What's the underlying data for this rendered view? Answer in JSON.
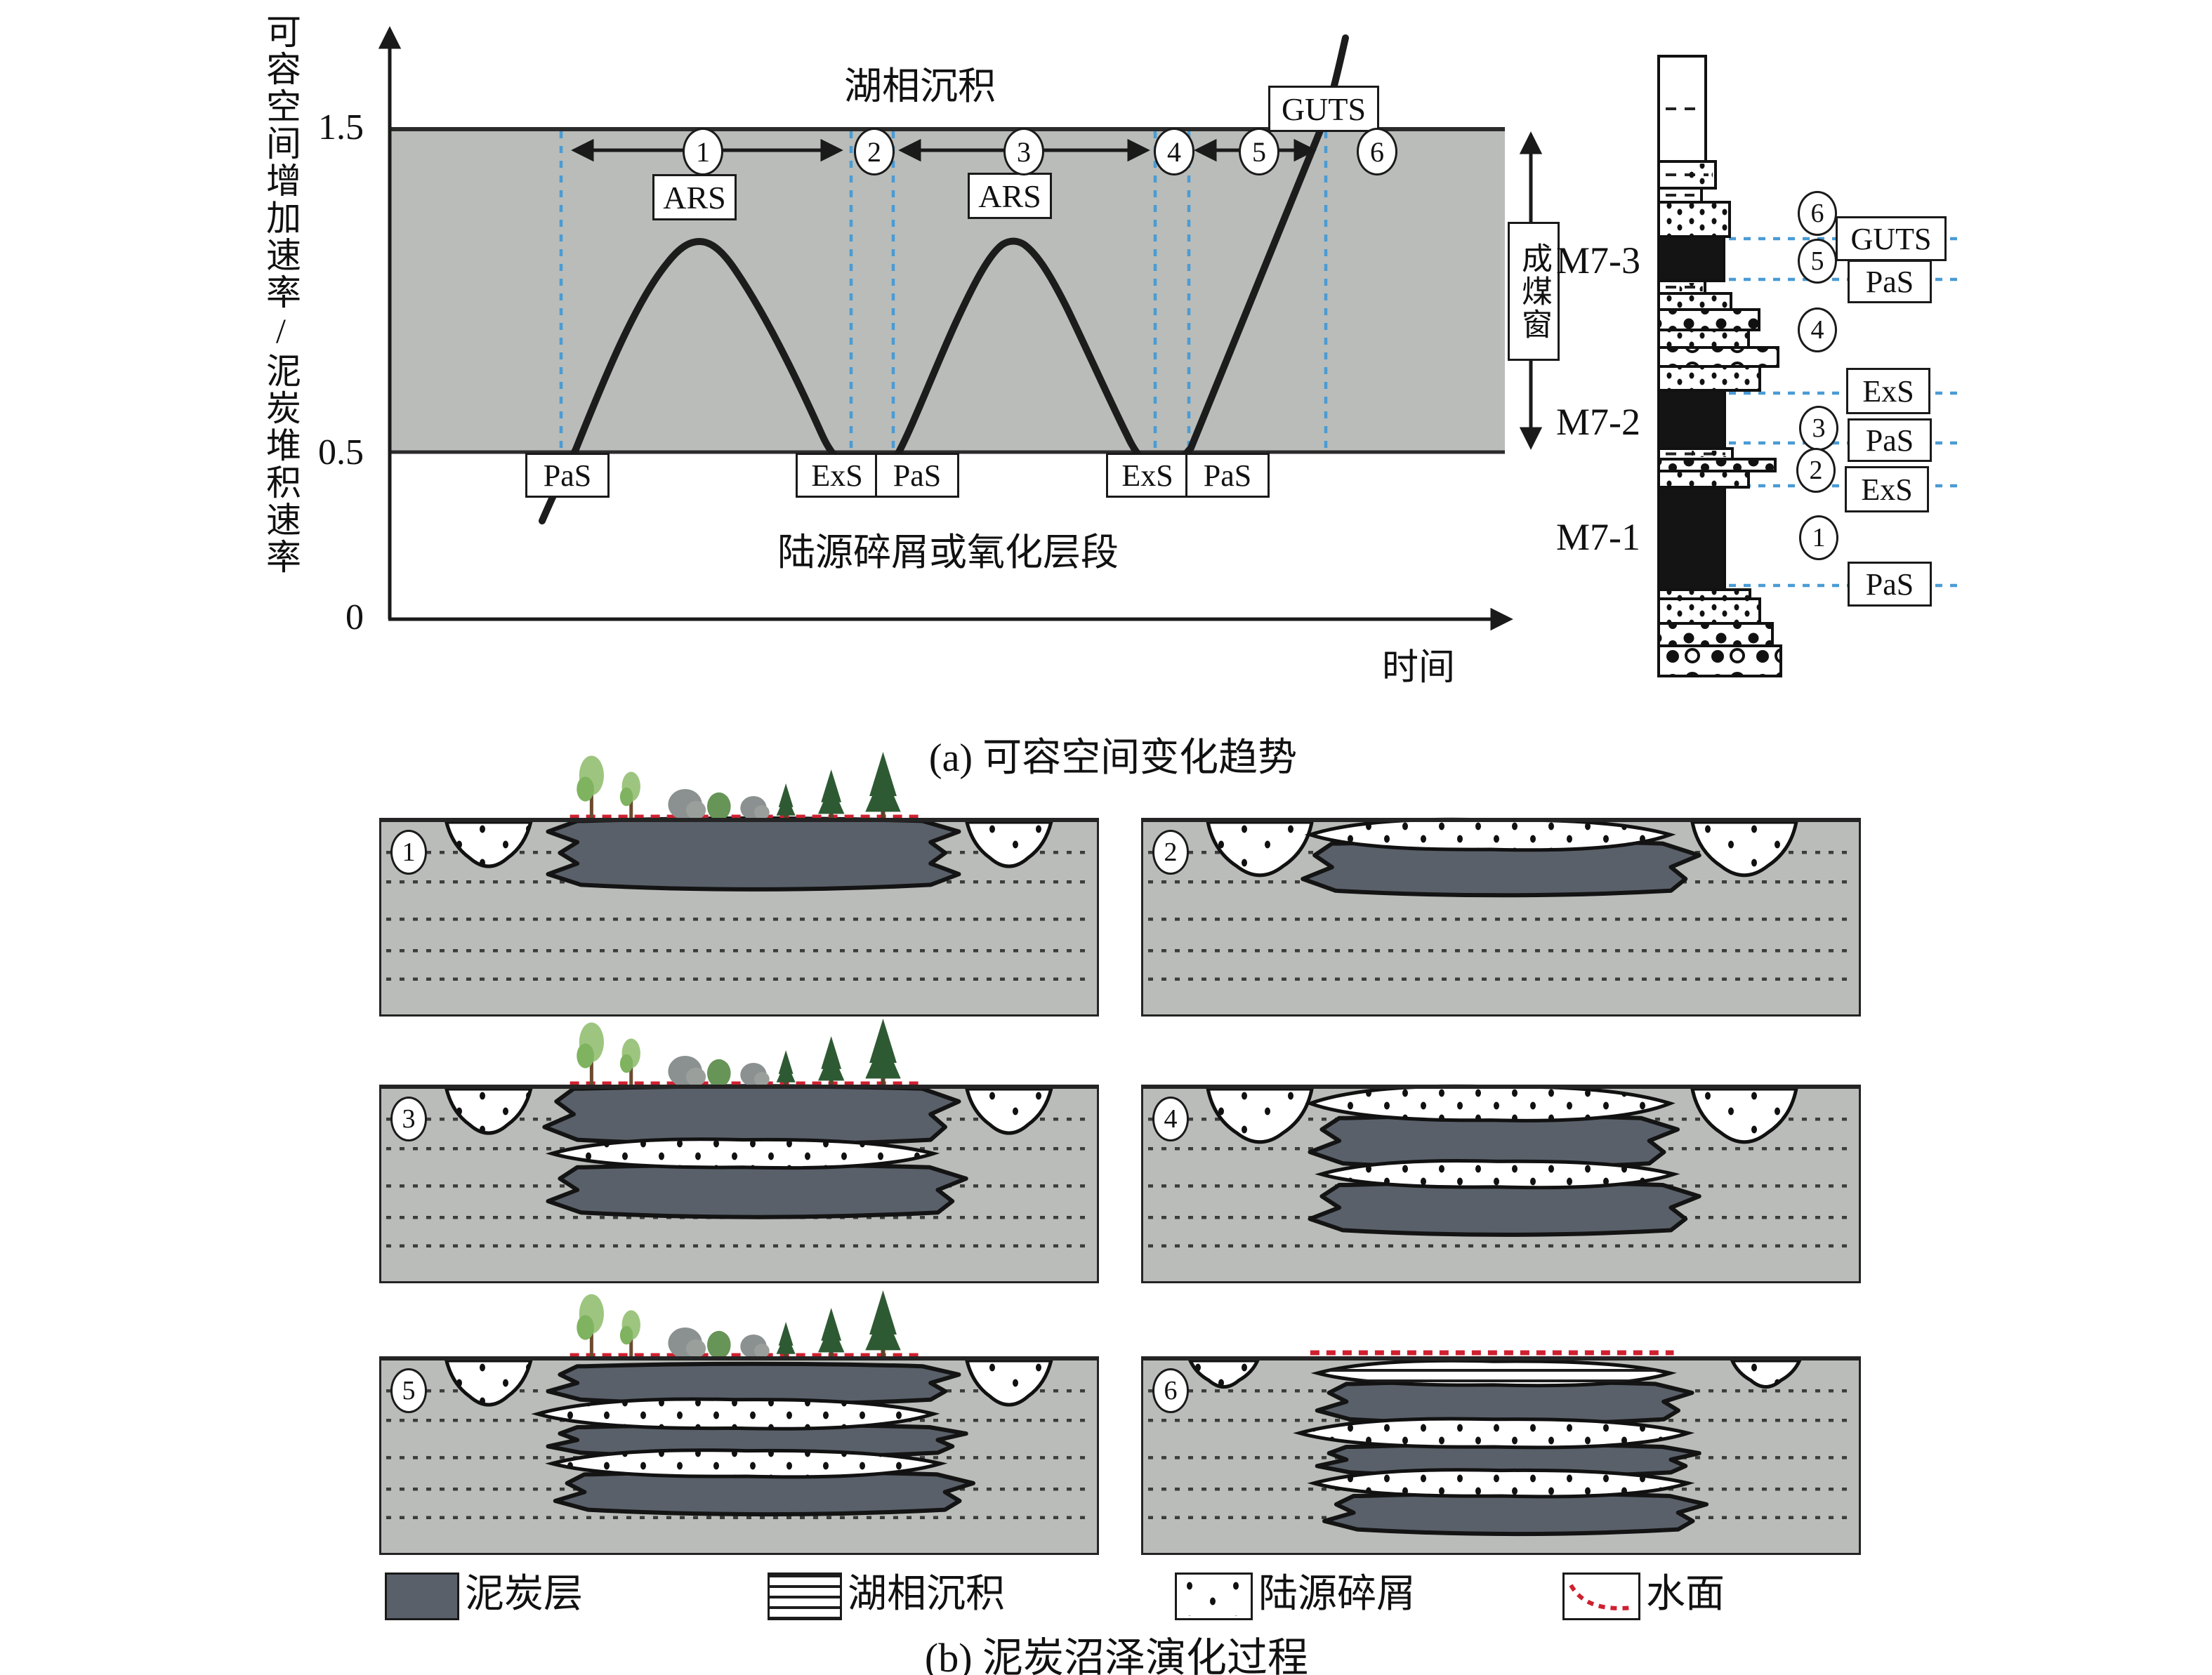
{
  "colors": {
    "matrix_gray": "#b9bcb8",
    "peat": "#59606a",
    "coal": "#141414",
    "blue_dash": "#4a9bd4",
    "red_dash": "#cf2030",
    "curve": "#1c1c1c"
  },
  "panel_a": {
    "caption": "(a) 可容空间变化趋势",
    "y_axis_title": "可容空间增加速率/泥炭堆积速率",
    "x_axis_label": "时间",
    "ticks": {
      "high": "1.5",
      "low": "0.5",
      "zero": "0"
    },
    "upper_zone": "湖相沉积",
    "lower_zone": "陆源碎屑或氧化层段",
    "coal_window": "成煤窗",
    "stage_numbers": [
      "1",
      "2",
      "3",
      "4",
      "5",
      "6"
    ],
    "labels": {
      "ars1": "ARS",
      "ars2": "ARS",
      "guts": "GUTS",
      "pas1": "PaS",
      "exs1": "ExS",
      "pas2": "PaS",
      "exs2": "ExS",
      "pas3": "PaS"
    },
    "column": {
      "seams": [
        "M7-3",
        "M7-2",
        "M7-1"
      ],
      "stage_numbers": [
        "6",
        "5",
        "4",
        "3",
        "2",
        "1"
      ],
      "event_boxes": [
        "GUTS",
        "PaS",
        "ExS",
        "PaS",
        "ExS",
        "PaS"
      ]
    }
  },
  "panel_b": {
    "caption": "(b) 泥炭沼泽演化过程",
    "stage_numbers": [
      "1",
      "2",
      "3",
      "4",
      "5",
      "6"
    ],
    "legend": {
      "peat": "泥炭层",
      "lacustrine": "湖相沉积",
      "clastics": "陆源碎屑",
      "water": "水面"
    }
  },
  "chart_data": {
    "type": "line",
    "title": "(a) 可容空间变化趋势",
    "xlabel": "时间",
    "ylabel": "可容空间增加速率/泥炭堆积速率",
    "yticks": [
      0,
      0.5,
      1.5
    ],
    "shaded_band_y": [
      0.5,
      1.5
    ],
    "band_label_above": "湖相沉积",
    "band_label_below": "陆源碎屑或氧化层段",
    "stages": [
      "1",
      "2",
      "3",
      "4",
      "5",
      "6"
    ],
    "curve_description": "Ratio of accommodation-increase rate to peat-accumulation rate through time: starts below 0.5 (PaS), two bell-shaped peaks reaching about 1.2 (ARS) separated by troughs touching 0.5 (ExS/PaS), then a steep final rise (GUTS) exceeding 1.5 into lacustrine conditions",
    "grid": false,
    "legend_entries": [
      "泥炭层",
      "湖相沉积",
      "陆源碎屑",
      "水面"
    ]
  }
}
